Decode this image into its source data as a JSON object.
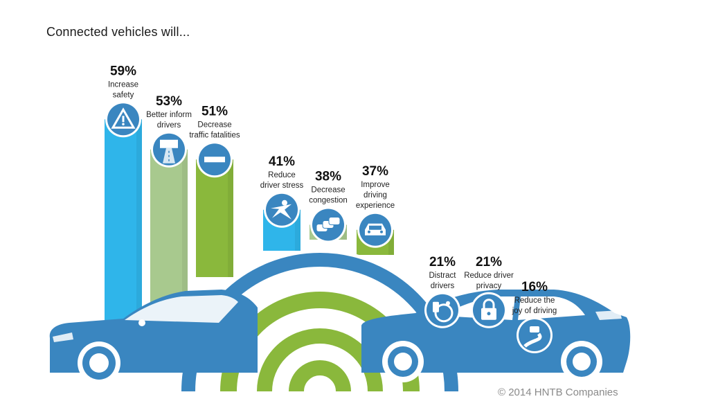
{
  "header": {
    "title": "Connected vehicles will..."
  },
  "footer": {
    "copyright": "© 2014 HNTB Companies"
  },
  "colors": {
    "blue": "#3a86c0",
    "cyan": "#2fb5ea",
    "green": "#8ab83c",
    "light_green": "#a8c98e"
  },
  "chart_data": {
    "type": "bar",
    "title": "Connected vehicles will...",
    "categories": [
      "Increase safety",
      "Better inform drivers",
      "Decrease traffic fatalities",
      "Reduce driver stress",
      "Decrease congestion",
      "Improve driving experience",
      "Distract drivers",
      "Reduce driver privacy",
      "Reduce the joy of driving"
    ],
    "values": [
      59,
      53,
      51,
      41,
      38,
      37,
      21,
      21,
      16
    ],
    "value_labels": [
      "59%",
      "53%",
      "51%",
      "41%",
      "38%",
      "37%",
      "21%",
      "21%",
      "16%"
    ],
    "label_lines": [
      [
        "Increase",
        "safety"
      ],
      [
        "Better inform",
        "drivers"
      ],
      [
        "Decrease",
        "traffic fatalities"
      ],
      [
        "Reduce",
        "driver stress"
      ],
      [
        "Decrease",
        "congestion"
      ],
      [
        "Improve",
        "driving",
        "experience"
      ],
      [
        "Distract",
        "drivers"
      ],
      [
        "Reduce driver",
        "privacy"
      ],
      [
        "Reduce the",
        "joy of driving"
      ]
    ],
    "icons": [
      "warning-sign-icon",
      "amber-alert-sign-icon",
      "do-not-enter-icon",
      "relaxed-person-icon",
      "traffic-cars-icon",
      "car-front-icon",
      "phone-and-wheel-icon",
      "padlock-icon",
      "car-on-road-icon"
    ],
    "bar_colors": [
      "#2fb5ea",
      "#a8c98e",
      "#8ab83c",
      "#2fb5ea",
      "#a8c98e",
      "#8ab83c",
      "#2fb5ea",
      "#a8c98e",
      "#8ab83c"
    ],
    "unit": "%"
  }
}
